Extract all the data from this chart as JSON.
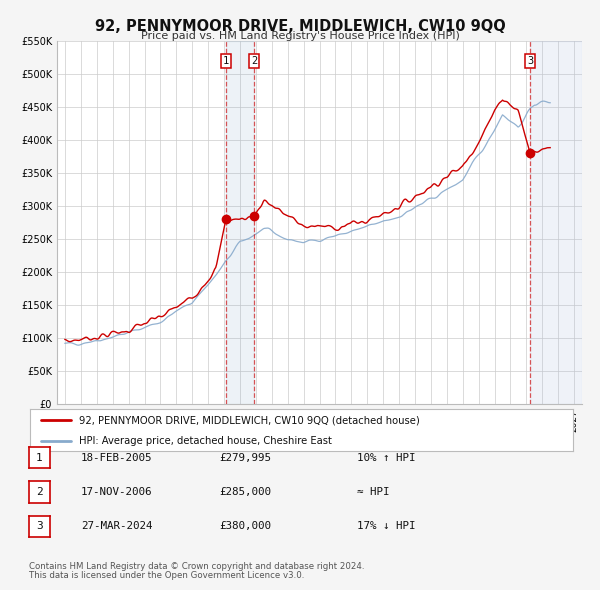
{
  "title": "92, PENNYMOOR DRIVE, MIDDLEWICH, CW10 9QQ",
  "subtitle": "Price paid vs. HM Land Registry's House Price Index (HPI)",
  "ylim": [
    0,
    550000
  ],
  "xlim": [
    1994.5,
    2027.5
  ],
  "ytick_labels": [
    "£0",
    "£50K",
    "£100K",
    "£150K",
    "£200K",
    "£250K",
    "£300K",
    "£350K",
    "£400K",
    "£450K",
    "£500K",
    "£550K"
  ],
  "ytick_values": [
    0,
    50000,
    100000,
    150000,
    200000,
    250000,
    300000,
    350000,
    400000,
    450000,
    500000,
    550000
  ],
  "line1_color": "#cc0000",
  "line2_color": "#88aacc",
  "sale1_x": 2005.12,
  "sale1_y": 279995,
  "sale2_x": 2006.9,
  "sale2_y": 285000,
  "sale3_x": 2024.24,
  "sale3_y": 380000,
  "legend1_label": "92, PENNYMOOR DRIVE, MIDDLEWICH, CW10 9QQ (detached house)",
  "legend2_label": "HPI: Average price, detached house, Cheshire East",
  "table_rows": [
    {
      "num": "1",
      "date": "18-FEB-2005",
      "price": "£279,995",
      "vs_hpi": "10% ↑ HPI"
    },
    {
      "num": "2",
      "date": "17-NOV-2006",
      "price": "£285,000",
      "vs_hpi": "≈ HPI"
    },
    {
      "num": "3",
      "date": "27-MAR-2024",
      "price": "£380,000",
      "vs_hpi": "17% ↓ HPI"
    }
  ],
  "footer1": "Contains HM Land Registry data © Crown copyright and database right 2024.",
  "footer2": "This data is licensed under the Open Government Licence v3.0.",
  "bg_color": "#f5f5f5",
  "plot_bg_color": "#ffffff",
  "grid_color": "#cccccc"
}
